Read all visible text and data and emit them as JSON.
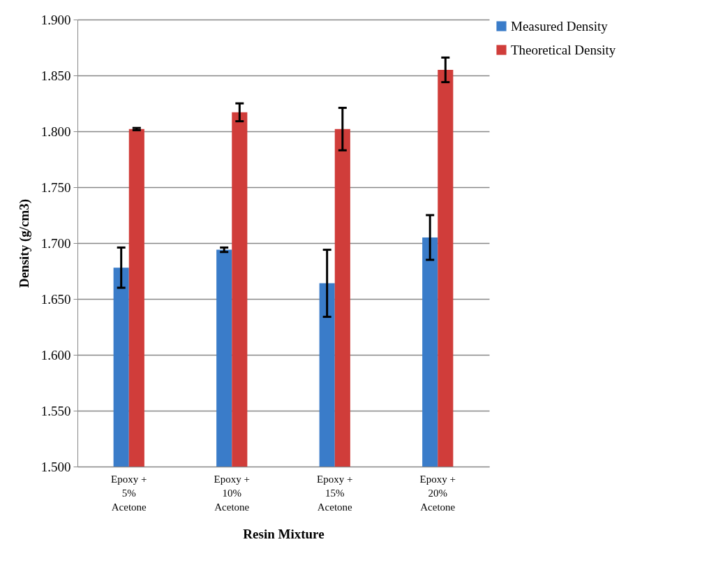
{
  "chart_data": {
    "type": "bar",
    "xlabel": "Resin Mixture",
    "ylabel": "Density (g/cm3)",
    "categories": [
      "Epoxy + 5% Acetone",
      "Epoxy + 10% Acetone",
      "Epoxy + 15% Acetone",
      "Epoxy + 20% Acetone"
    ],
    "series": [
      {
        "name": "Measured Density",
        "color": "#3a7cc9",
        "values": [
          1.678,
          1.694,
          1.664,
          1.705
        ],
        "errors": [
          0.018,
          0.002,
          0.03,
          0.02
        ]
      },
      {
        "name": "Theoretical Density",
        "color": "#d03d3a",
        "values": [
          1.802,
          1.817,
          1.802,
          1.855
        ],
        "errors": [
          0.001,
          0.008,
          0.019,
          0.011
        ]
      }
    ],
    "ylim": [
      1.5,
      1.9
    ],
    "yticks": [
      {
        "value": 1.5,
        "label": "1.500"
      },
      {
        "value": 1.55,
        "label": "1.550"
      },
      {
        "value": 1.6,
        "label": "1.600"
      },
      {
        "value": 1.65,
        "label": "1.650"
      },
      {
        "value": 1.7,
        "label": "1.700"
      },
      {
        "value": 1.75,
        "label": "1.750"
      },
      {
        "value": 1.8,
        "label": "1.800"
      },
      {
        "value": 1.85,
        "label": "1.850"
      },
      {
        "value": 1.9,
        "label": "1.900"
      }
    ],
    "grid": "y",
    "legend": "right"
  }
}
